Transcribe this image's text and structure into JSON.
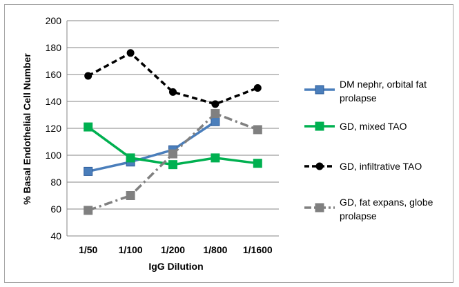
{
  "chart_data": {
    "type": "line",
    "title": "",
    "xlabel": "IgG Dilution",
    "ylabel": "% Basal Endothelial Cell Number",
    "categories": [
      "1/50",
      "1/100",
      "1/200",
      "1/800",
      "1/1600"
    ],
    "ylim": [
      40,
      200
    ],
    "yticks": [
      40,
      60,
      80,
      100,
      120,
      140,
      160,
      180,
      200
    ],
    "grid": true,
    "legend_position": "right",
    "series": [
      {
        "name": [
          "DM nephr, orbital fat",
          "prolapse"
        ],
        "color": "#4a7ebb",
        "marker": "square",
        "dash": "solid",
        "values": [
          88,
          95,
          104,
          125,
          null
        ]
      },
      {
        "name": [
          "GD, mixed TAO"
        ],
        "color": "#00b050",
        "marker": "square",
        "dash": "solid",
        "values": [
          121,
          98,
          93,
          98,
          94
        ]
      },
      {
        "name": [
          "GD, infiltrative TAO"
        ],
        "color": "#000000",
        "marker": "circle",
        "dash": "dashed",
        "values": [
          159,
          176,
          147,
          138,
          150
        ]
      },
      {
        "name": [
          "GD, fat expans, globe",
          "prolapse"
        ],
        "color": "#808080",
        "marker": "square",
        "dash": "dashdot",
        "values": [
          59,
          70,
          101,
          131,
          119
        ]
      }
    ]
  }
}
